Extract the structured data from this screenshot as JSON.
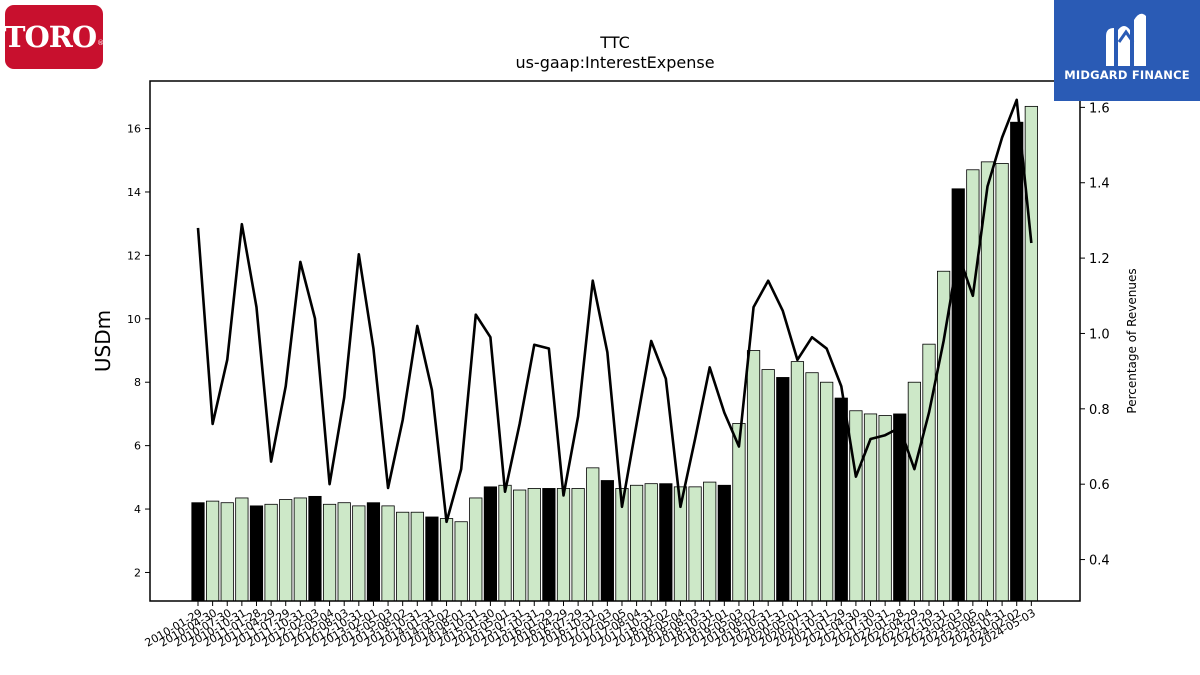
{
  "logos": {
    "left": {
      "text": "TORO",
      "reg": "®",
      "bg_color": "#c8102e"
    },
    "right": {
      "text": "MIDGARD FINANCE",
      "bg_color": "#2a5bb5"
    }
  },
  "chart_data": {
    "type": "bar",
    "title": "TTC",
    "subtitle": "us-gaap:InterestExpense",
    "ylabel": "USDm",
    "y2label": "Percentage of Revenues",
    "ylim": [
      1.1,
      17.5
    ],
    "y2lim": [
      0.29,
      1.67
    ],
    "yticks": [
      2,
      4,
      6,
      8,
      10,
      12,
      14,
      16
    ],
    "y2ticks": [
      0.4,
      0.6,
      0.8,
      1.0,
      1.2,
      1.4,
      1.6
    ],
    "ytick_labels": [
      "2",
      "4",
      "6",
      "8",
      "10",
      "12",
      "14",
      "16"
    ],
    "y2tick_labels": [
      "0.4",
      "0.6",
      "0.8",
      "1.0",
      "1.2",
      "1.4",
      "1.6"
    ],
    "colors": {
      "annual_bar": "#000000",
      "quarter_bar": "#cde8c8",
      "line": "#000000"
    },
    "categories": [
      "2010-01-29",
      "2010-04-30",
      "2010-07-30",
      "2010-10-31",
      "2011-01-28",
      "2011-04-29",
      "2011-07-29",
      "2011-10-31",
      "2012-02-03",
      "2012-05-04",
      "2012-08-03",
      "2012-10-31",
      "2013-02-01",
      "2013-05-03",
      "2013-08-02",
      "2013-10-31",
      "2014-01-31",
      "2014-05-02",
      "2014-08-01",
      "2014-10-31",
      "2015-01-30",
      "2015-05-01",
      "2015-07-31",
      "2015-10-31",
      "2016-01-29",
      "2016-04-29",
      "2016-07-29",
      "2016-10-31",
      "2017-02-03",
      "2017-05-05",
      "2017-08-04",
      "2017-10-31",
      "2018-02-02",
      "2018-05-04",
      "2018-08-03",
      "2018-10-31",
      "2019-02-01",
      "2019-05-03",
      "2019-08-02",
      "2019-10-31",
      "2020-01-31",
      "2020-05-01",
      "2020-07-31",
      "2020-10-31",
      "2021-01-29",
      "2021-04-30",
      "2021-07-30",
      "2021-10-31",
      "2022-01-28",
      "2022-04-29",
      "2022-07-29",
      "2022-10-31",
      "2023-02-03",
      "2023-05-05",
      "2023-08-04",
      "2023-10-31",
      "2024-02-02",
      "2024-05-03"
    ],
    "annual": [
      true,
      false,
      false,
      false,
      true,
      false,
      false,
      false,
      true,
      false,
      false,
      false,
      true,
      false,
      false,
      false,
      true,
      false,
      false,
      false,
      true,
      false,
      false,
      false,
      true,
      false,
      false,
      false,
      true,
      false,
      false,
      false,
      true,
      false,
      false,
      false,
      true,
      false,
      false,
      false,
      true,
      false,
      false,
      false,
      true,
      false,
      false,
      false,
      true,
      false,
      false,
      false,
      true,
      false,
      false,
      false,
      true,
      false
    ],
    "values": [
      4.2,
      4.25,
      4.2,
      4.35,
      4.1,
      4.15,
      4.3,
      4.35,
      4.4,
      4.15,
      4.2,
      4.1,
      4.2,
      4.1,
      3.9,
      3.9,
      3.75,
      3.7,
      3.6,
      4.35,
      4.7,
      4.75,
      4.6,
      4.65,
      4.65,
      4.65,
      4.65,
      5.3,
      4.9,
      4.65,
      4.75,
      4.8,
      4.8,
      4.7,
      4.7,
      4.85,
      4.75,
      6.7,
      9.0,
      8.4,
      8.15,
      8.65,
      8.3,
      8.0,
      7.5,
      7.1,
      7.0,
      6.95,
      7.0,
      8.0,
      9.2,
      11.5,
      14.1,
      14.7,
      14.95,
      14.9,
      16.2,
      16.7
    ],
    "line_values": [
      1.28,
      0.76,
      0.93,
      1.29,
      1.07,
      0.66,
      0.86,
      1.19,
      1.04,
      0.6,
      0.83,
      1.21,
      0.96,
      0.59,
      0.77,
      1.02,
      0.85,
      0.5,
      0.64,
      1.05,
      0.99,
      0.58,
      0.76,
      0.97,
      0.96,
      0.57,
      0.78,
      1.14,
      0.95,
      0.54,
      0.76,
      0.98,
      0.88,
      0.54,
      0.72,
      0.91,
      0.79,
      0.7,
      1.07,
      1.14,
      1.06,
      0.93,
      0.99,
      0.96,
      0.86,
      0.62,
      0.72,
      0.73,
      0.75,
      0.64,
      0.79,
      0.98,
      1.21,
      1.1,
      1.39,
      1.52,
      1.62,
      1.24
    ]
  }
}
